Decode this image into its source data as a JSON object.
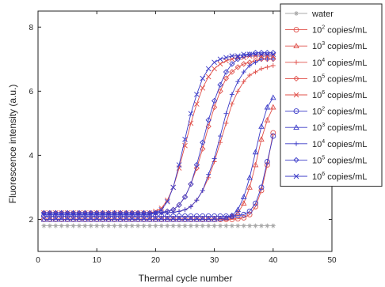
{
  "chart_data": {
    "type": "line",
    "xlabel": "Thermal cycle number",
    "ylabel": "Fluorescence intensity (a.u.)",
    "xlim": [
      0,
      50
    ],
    "ylim": [
      1,
      8.5
    ],
    "xticks": [
      0,
      10,
      20,
      30,
      40,
      50
    ],
    "yticks": [
      2,
      4,
      6,
      8
    ],
    "grid": false,
    "legend_position": "top-right",
    "colors": {
      "red": "#e0504a",
      "blue": "#3b3bc8",
      "gray": "#a8a8a8"
    },
    "series": [
      {
        "label": "water",
        "color": "#a8a8a8",
        "marker": "asterisk",
        "x": [
          1,
          2,
          3,
          4,
          5,
          6,
          7,
          8,
          9,
          10,
          11,
          12,
          13,
          14,
          15,
          16,
          17,
          18,
          19,
          20,
          21,
          22,
          23,
          24,
          25,
          26,
          27,
          28,
          29,
          30,
          31,
          32,
          33,
          34,
          35,
          36,
          37,
          38,
          39,
          40
        ],
        "y": [
          1.8,
          1.8,
          1.8,
          1.8,
          1.8,
          1.8,
          1.8,
          1.8,
          1.8,
          1.8,
          1.8,
          1.8,
          1.8,
          1.8,
          1.8,
          1.8,
          1.8,
          1.8,
          1.8,
          1.8,
          1.8,
          1.8,
          1.8,
          1.8,
          1.8,
          1.8,
          1.8,
          1.8,
          1.8,
          1.8,
          1.8,
          1.8,
          1.8,
          1.8,
          1.8,
          1.8,
          1.8,
          1.8,
          1.8,
          1.8
        ]
      },
      {
        "label": "10² copies/mL",
        "label_base": "10",
        "label_exp": "2",
        "label_tail": " copies/mL",
        "color": "#e0504a",
        "marker": "circle",
        "x": [
          1,
          2,
          3,
          4,
          5,
          6,
          7,
          8,
          9,
          10,
          11,
          12,
          13,
          14,
          15,
          16,
          17,
          18,
          19,
          20,
          21,
          22,
          23,
          24,
          25,
          26,
          27,
          28,
          29,
          30,
          31,
          32,
          33,
          34,
          35,
          36,
          37,
          38,
          39,
          40
        ],
        "y": [
          2.0,
          2.0,
          2.0,
          2.0,
          2.0,
          2.0,
          2.0,
          2.0,
          2.0,
          2.0,
          2.0,
          2.0,
          2.0,
          2.0,
          2.0,
          2.0,
          2.0,
          2.0,
          2.0,
          2.0,
          2.0,
          2.0,
          2.0,
          2.0,
          2.0,
          2.0,
          2.0,
          2.0,
          2.0,
          2.0,
          2.0,
          2.0,
          2.0,
          2.02,
          2.05,
          2.15,
          2.4,
          2.9,
          3.7,
          4.7
        ]
      },
      {
        "label": "10³ copies/mL",
        "label_base": "10",
        "label_exp": "3",
        "label_tail": " copies/mL",
        "color": "#e0504a",
        "marker": "triangle",
        "x": [
          1,
          2,
          3,
          4,
          5,
          6,
          7,
          8,
          9,
          10,
          11,
          12,
          13,
          14,
          15,
          16,
          17,
          18,
          19,
          20,
          21,
          22,
          23,
          24,
          25,
          26,
          27,
          28,
          29,
          30,
          31,
          32,
          33,
          34,
          35,
          36,
          37,
          38,
          39,
          40
        ],
        "y": [
          2.0,
          2.0,
          2.0,
          2.0,
          2.0,
          2.0,
          2.0,
          2.0,
          2.0,
          2.0,
          2.0,
          2.0,
          2.0,
          2.0,
          2.0,
          2.0,
          2.0,
          2.0,
          2.0,
          2.0,
          2.0,
          2.0,
          2.0,
          2.0,
          2.0,
          2.0,
          2.0,
          2.0,
          2.0,
          2.0,
          2.01,
          2.03,
          2.08,
          2.2,
          2.5,
          3.0,
          3.7,
          4.5,
          5.1,
          5.5
        ]
      },
      {
        "label": "10⁴ copies/mL",
        "label_base": "10",
        "label_exp": "4",
        "label_tail": " copies/mL",
        "color": "#e0504a",
        "marker": "plus",
        "x": [
          1,
          2,
          3,
          4,
          5,
          6,
          7,
          8,
          9,
          10,
          11,
          12,
          13,
          14,
          15,
          16,
          17,
          18,
          19,
          20,
          21,
          22,
          23,
          24,
          25,
          26,
          27,
          28,
          29,
          30,
          31,
          32,
          33,
          34,
          35,
          36,
          37,
          38,
          39,
          40
        ],
        "y": [
          2.2,
          2.2,
          2.2,
          2.2,
          2.2,
          2.2,
          2.2,
          2.2,
          2.2,
          2.2,
          2.2,
          2.2,
          2.2,
          2.2,
          2.2,
          2.2,
          2.2,
          2.2,
          2.2,
          2.2,
          2.2,
          2.21,
          2.22,
          2.25,
          2.3,
          2.4,
          2.6,
          2.9,
          3.3,
          3.8,
          4.4,
          5.0,
          5.6,
          6.0,
          6.3,
          6.5,
          6.6,
          6.7,
          6.75,
          6.8
        ]
      },
      {
        "label": "10⁵ copies/mL",
        "label_base": "10",
        "label_exp": "5",
        "label_tail": " copies/mL",
        "color": "#e0504a",
        "marker": "diamond",
        "x": [
          1,
          2,
          3,
          4,
          5,
          6,
          7,
          8,
          9,
          10,
          11,
          12,
          13,
          14,
          15,
          16,
          17,
          18,
          19,
          20,
          21,
          22,
          23,
          24,
          25,
          26,
          27,
          28,
          29,
          30,
          31,
          32,
          33,
          34,
          35,
          36,
          37,
          38,
          39,
          40
        ],
        "y": [
          2.2,
          2.2,
          2.2,
          2.2,
          2.2,
          2.2,
          2.2,
          2.2,
          2.2,
          2.2,
          2.2,
          2.2,
          2.2,
          2.2,
          2.2,
          2.2,
          2.2,
          2.2,
          2.2,
          2.2,
          2.22,
          2.25,
          2.3,
          2.45,
          2.7,
          3.1,
          3.6,
          4.2,
          4.9,
          5.5,
          6.0,
          6.4,
          6.6,
          6.75,
          6.85,
          6.9,
          6.95,
          7.0,
          7.0,
          7.0
        ]
      },
      {
        "label": "10⁶ copies/mL",
        "label_base": "10",
        "label_exp": "6",
        "label_tail": " copies/mL",
        "color": "#e0504a",
        "marker": "x",
        "x": [
          1,
          2,
          3,
          4,
          5,
          6,
          7,
          8,
          9,
          10,
          11,
          12,
          13,
          14,
          15,
          16,
          17,
          18,
          19,
          20,
          21,
          22,
          23,
          24,
          25,
          26,
          27,
          28,
          29,
          30,
          31,
          32,
          33,
          34,
          35,
          36,
          37,
          38,
          39,
          40
        ],
        "y": [
          2.2,
          2.2,
          2.2,
          2.2,
          2.2,
          2.2,
          2.2,
          2.2,
          2.2,
          2.2,
          2.2,
          2.2,
          2.2,
          2.2,
          2.2,
          2.2,
          2.2,
          2.2,
          2.2,
          2.25,
          2.35,
          2.6,
          3.0,
          3.6,
          4.3,
          5.0,
          5.6,
          6.1,
          6.45,
          6.7,
          6.85,
          6.95,
          7.0,
          7.05,
          7.05,
          7.1,
          7.1,
          7.1,
          7.1,
          7.1
        ]
      },
      {
        "label": "10² copies/mL",
        "label_base": "10",
        "label_exp": "2",
        "label_tail": " copies/mL",
        "color": "#3b3bc8",
        "marker": "circle",
        "x": [
          1,
          2,
          3,
          4,
          5,
          6,
          7,
          8,
          9,
          10,
          11,
          12,
          13,
          14,
          15,
          16,
          17,
          18,
          19,
          20,
          21,
          22,
          23,
          24,
          25,
          26,
          27,
          28,
          29,
          30,
          31,
          32,
          33,
          34,
          35,
          36,
          37,
          38,
          39,
          40
        ],
        "y": [
          2.1,
          2.1,
          2.1,
          2.1,
          2.1,
          2.1,
          2.1,
          2.1,
          2.1,
          2.1,
          2.1,
          2.1,
          2.1,
          2.1,
          2.1,
          2.1,
          2.1,
          2.1,
          2.1,
          2.1,
          2.1,
          2.1,
          2.1,
          2.1,
          2.1,
          2.1,
          2.1,
          2.1,
          2.1,
          2.1,
          2.1,
          2.1,
          2.1,
          2.12,
          2.15,
          2.25,
          2.5,
          3.0,
          3.8,
          4.6
        ]
      },
      {
        "label": "10³ copies/mL",
        "label_base": "10",
        "label_exp": "3",
        "label_tail": " copies/mL",
        "color": "#3b3bc8",
        "marker": "triangle",
        "x": [
          1,
          2,
          3,
          4,
          5,
          6,
          7,
          8,
          9,
          10,
          11,
          12,
          13,
          14,
          15,
          16,
          17,
          18,
          19,
          20,
          21,
          22,
          23,
          24,
          25,
          26,
          27,
          28,
          29,
          30,
          31,
          32,
          33,
          34,
          35,
          36,
          37,
          38,
          39,
          40
        ],
        "y": [
          2.0,
          2.0,
          2.0,
          2.0,
          2.0,
          2.0,
          2.0,
          2.0,
          2.0,
          2.0,
          2.0,
          2.0,
          2.0,
          2.0,
          2.0,
          2.0,
          2.0,
          2.0,
          2.0,
          2.0,
          2.0,
          2.0,
          2.0,
          2.0,
          2.0,
          2.0,
          2.0,
          2.0,
          2.0,
          2.0,
          2.02,
          2.05,
          2.12,
          2.3,
          2.7,
          3.3,
          4.1,
          4.9,
          5.5,
          5.8
        ]
      },
      {
        "label": "10⁴ copies/mL",
        "label_base": "10",
        "label_exp": "4",
        "label_tail": " copies/mL",
        "color": "#3b3bc8",
        "marker": "plus",
        "x": [
          1,
          2,
          3,
          4,
          5,
          6,
          7,
          8,
          9,
          10,
          11,
          12,
          13,
          14,
          15,
          16,
          17,
          18,
          19,
          20,
          21,
          22,
          23,
          24,
          25,
          26,
          27,
          28,
          29,
          30,
          31,
          32,
          33,
          34,
          35,
          36,
          37,
          38,
          39,
          40
        ],
        "y": [
          2.2,
          2.2,
          2.2,
          2.2,
          2.2,
          2.2,
          2.2,
          2.2,
          2.2,
          2.2,
          2.2,
          2.2,
          2.2,
          2.2,
          2.2,
          2.2,
          2.2,
          2.2,
          2.2,
          2.2,
          2.2,
          2.21,
          2.22,
          2.25,
          2.3,
          2.4,
          2.6,
          2.9,
          3.4,
          3.9,
          4.6,
          5.3,
          5.9,
          6.3,
          6.6,
          6.8,
          6.9,
          7.0,
          7.0,
          7.0
        ]
      },
      {
        "label": "10⁵ copies/mL",
        "label_base": "10",
        "label_exp": "5",
        "label_tail": " copies/mL",
        "color": "#3b3bc8",
        "marker": "diamond",
        "x": [
          1,
          2,
          3,
          4,
          5,
          6,
          7,
          8,
          9,
          10,
          11,
          12,
          13,
          14,
          15,
          16,
          17,
          18,
          19,
          20,
          21,
          22,
          23,
          24,
          25,
          26,
          27,
          28,
          29,
          30,
          31,
          32,
          33,
          34,
          35,
          36,
          37,
          38,
          39,
          40
        ],
        "y": [
          2.2,
          2.2,
          2.2,
          2.2,
          2.2,
          2.2,
          2.2,
          2.2,
          2.2,
          2.2,
          2.2,
          2.2,
          2.2,
          2.2,
          2.2,
          2.2,
          2.2,
          2.2,
          2.2,
          2.2,
          2.22,
          2.25,
          2.3,
          2.45,
          2.7,
          3.1,
          3.7,
          4.4,
          5.1,
          5.7,
          6.2,
          6.6,
          6.85,
          7.0,
          7.1,
          7.15,
          7.2,
          7.2,
          7.2,
          7.2
        ]
      },
      {
        "label": "10⁶ copies/mL",
        "label_base": "10",
        "label_exp": "6",
        "label_tail": " copies/mL",
        "color": "#3b3bc8",
        "marker": "x",
        "x": [
          1,
          2,
          3,
          4,
          5,
          6,
          7,
          8,
          9,
          10,
          11,
          12,
          13,
          14,
          15,
          16,
          17,
          18,
          19,
          20,
          21,
          22,
          23,
          24,
          25,
          26,
          27,
          28,
          29,
          30,
          31,
          32,
          33,
          34,
          35,
          36,
          37,
          38,
          39,
          40
        ],
        "y": [
          2.15,
          2.15,
          2.15,
          2.15,
          2.15,
          2.15,
          2.15,
          2.15,
          2.15,
          2.15,
          2.15,
          2.15,
          2.15,
          2.15,
          2.15,
          2.15,
          2.15,
          2.15,
          2.15,
          2.2,
          2.3,
          2.55,
          3.0,
          3.7,
          4.5,
          5.3,
          5.9,
          6.4,
          6.7,
          6.9,
          7.0,
          7.05,
          7.1,
          7.1,
          7.15,
          7.15,
          7.15,
          7.15,
          7.15,
          7.15
        ]
      }
    ]
  }
}
